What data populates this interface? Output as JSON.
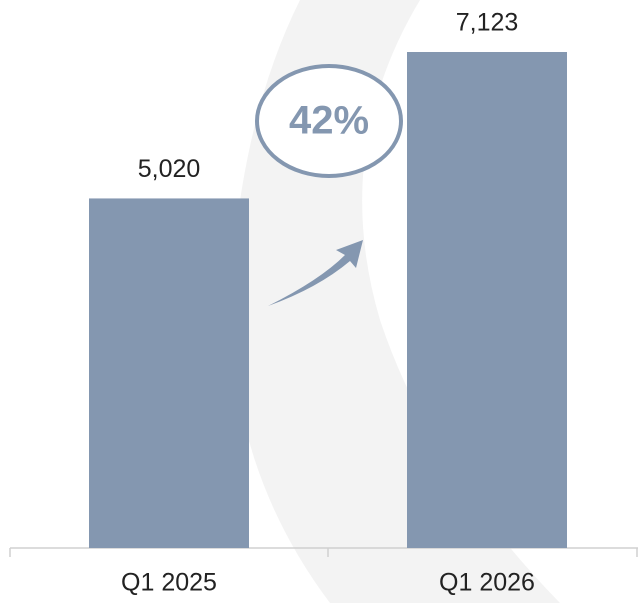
{
  "chart_data": {
    "type": "bar",
    "categories": [
      "Q1 2025",
      "Q1 2026"
    ],
    "values": [
      5020,
      7123
    ],
    "value_labels": [
      "5,020",
      "7,123"
    ],
    "color": "#8497b0",
    "annotation": "42%"
  }
}
